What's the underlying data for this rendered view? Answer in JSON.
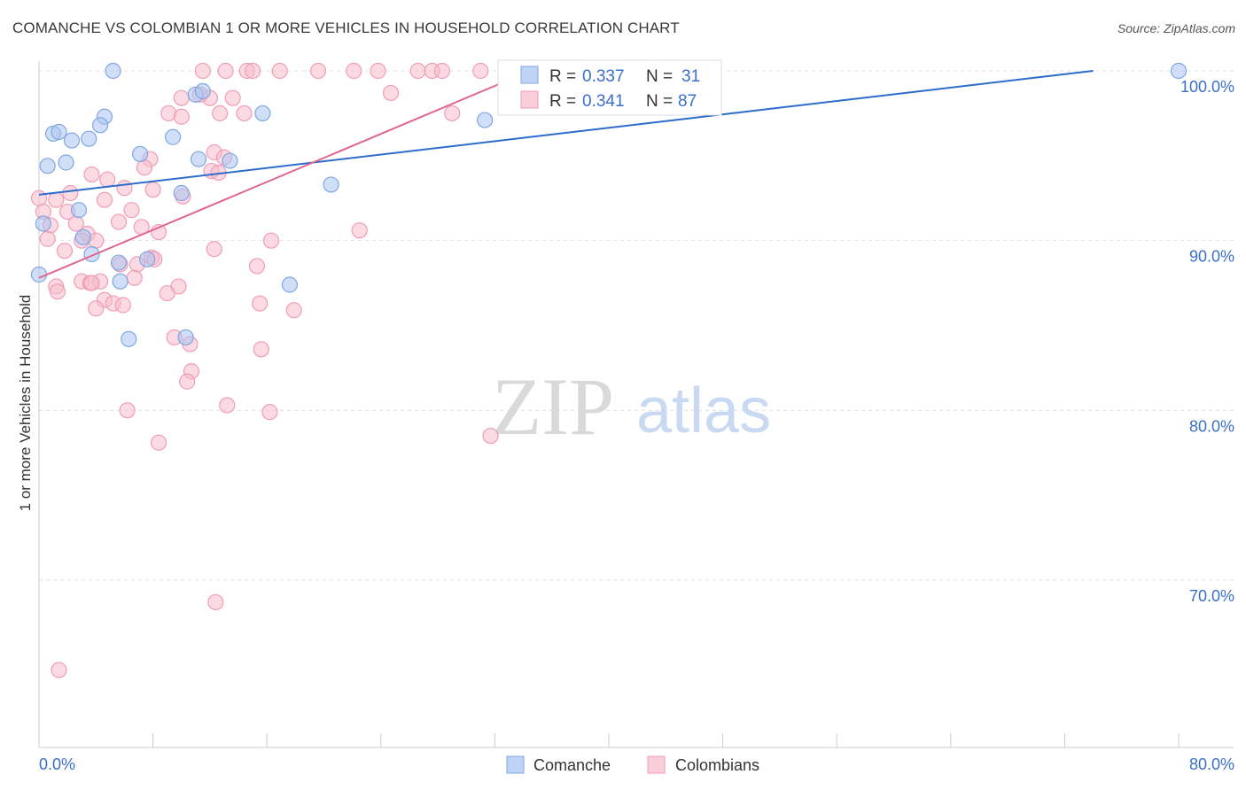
{
  "title": "COMANCHE VS COLOMBIAN 1 OR MORE VEHICLES IN HOUSEHOLD CORRELATION CHART",
  "source": "Source: ZipAtlas.com",
  "watermark": {
    "zip": "ZIP",
    "atlas": "atlas"
  },
  "legend_stats": [
    {
      "r_label": "R =",
      "r_value": "0.337",
      "n_label": "N =",
      "n_value": "31",
      "color": "#8fb3e8",
      "text_color": "#3a6fc9"
    },
    {
      "r_label": "R =",
      "r_value": "0.341",
      "n_label": "N =",
      "n_value": "87",
      "color": "#f4a6bd",
      "text_color": "#3a6fc9"
    }
  ],
  "colors": {
    "comanche_fill": "#a9c4f0",
    "comanche_stroke": "#7fa6e0",
    "comanche_line": "#2d6bcc",
    "colombian_fill": "#f7bccc",
    "colombian_stroke": "#ef9db5",
    "colombian_line": "#e0668f",
    "tick_label": "#3a6fc9",
    "grid": "#e3e3e3"
  },
  "chart_data": {
    "type": "scatter",
    "ylabel": "1 or more Vehicles in Household",
    "xlabel": "",
    "x_tick_labels": [
      "0.0%",
      "80.0%"
    ],
    "y_tick_labels": [
      "100.0%",
      "90.0%",
      "80.0%",
      "70.0%"
    ],
    "y_ticks": [
      100,
      90,
      80,
      70
    ],
    "xlim": [
      0,
      80
    ],
    "ylim": [
      60.5,
      101.5
    ],
    "legend": [
      "Comanche",
      "Colombians"
    ],
    "series": [
      {
        "name": "Comanche",
        "points": [
          [
            5.2,
            100
          ],
          [
            11.0,
            98.6
          ],
          [
            11.5,
            98.8
          ],
          [
            4.6,
            97.3
          ],
          [
            15.7,
            97.5
          ],
          [
            4.3,
            96.8
          ],
          [
            9.4,
            96.1
          ],
          [
            1.0,
            96.3
          ],
          [
            1.4,
            96.4
          ],
          [
            2.3,
            95.9
          ],
          [
            3.5,
            96.0
          ],
          [
            7.1,
            95.1
          ],
          [
            1.9,
            94.6
          ],
          [
            0.6,
            94.4
          ],
          [
            11.2,
            94.8
          ],
          [
            13.4,
            94.7
          ],
          [
            10.0,
            92.8
          ],
          [
            20.5,
            93.3
          ],
          [
            2.8,
            91.8
          ],
          [
            3.1,
            90.2
          ],
          [
            3.7,
            89.2
          ],
          [
            5.6,
            88.7
          ],
          [
            7.6,
            88.9
          ],
          [
            5.7,
            87.6
          ],
          [
            17.6,
            87.4
          ],
          [
            6.3,
            84.2
          ],
          [
            10.3,
            84.3
          ],
          [
            0.0,
            88.0
          ],
          [
            31.3,
            97.1
          ],
          [
            80.0,
            100
          ],
          [
            0.3,
            91.0
          ]
        ]
      },
      {
        "name": "Colombians",
        "points": [
          [
            11.5,
            100
          ],
          [
            13.1,
            100
          ],
          [
            14.6,
            100
          ],
          [
            15.0,
            100
          ],
          [
            16.9,
            100
          ],
          [
            19.6,
            100
          ],
          [
            22.1,
            100
          ],
          [
            23.8,
            100
          ],
          [
            26.6,
            100
          ],
          [
            27.6,
            100
          ],
          [
            31.0,
            100
          ],
          [
            33.5,
            100
          ],
          [
            34.3,
            100
          ],
          [
            28.3,
            100
          ],
          [
            10.0,
            98.4
          ],
          [
            12.0,
            98.4
          ],
          [
            13.6,
            98.4
          ],
          [
            24.7,
            98.7
          ],
          [
            9.1,
            97.5
          ],
          [
            10.0,
            97.3
          ],
          [
            12.7,
            97.5
          ],
          [
            14.4,
            97.5
          ],
          [
            29.0,
            97.5
          ],
          [
            12.3,
            95.2
          ],
          [
            7.8,
            94.8
          ],
          [
            13.0,
            94.9
          ],
          [
            7.4,
            94.3
          ],
          [
            12.1,
            94.1
          ],
          [
            12.6,
            94.0
          ],
          [
            3.7,
            93.9
          ],
          [
            4.8,
            93.6
          ],
          [
            6.0,
            93.1
          ],
          [
            8.0,
            93.0
          ],
          [
            2.2,
            92.8
          ],
          [
            10.1,
            92.6
          ],
          [
            4.6,
            92.4
          ],
          [
            1.2,
            92.4
          ],
          [
            0.0,
            92.5
          ],
          [
            6.5,
            91.8
          ],
          [
            0.3,
            91.7
          ],
          [
            2.0,
            91.7
          ],
          [
            5.6,
            91.1
          ],
          [
            2.6,
            91.0
          ],
          [
            0.8,
            90.9
          ],
          [
            7.2,
            90.8
          ],
          [
            3.4,
            90.4
          ],
          [
            8.4,
            90.5
          ],
          [
            3.0,
            90.0
          ],
          [
            4.0,
            90.0
          ],
          [
            16.3,
            90.0
          ],
          [
            22.5,
            90.6
          ],
          [
            0.6,
            90.1
          ],
          [
            12.3,
            89.5
          ],
          [
            1.8,
            89.4
          ],
          [
            7.9,
            89.0
          ],
          [
            8.1,
            88.9
          ],
          [
            15.3,
            88.5
          ],
          [
            6.9,
            88.6
          ],
          [
            5.7,
            88.6
          ],
          [
            1.2,
            87.3
          ],
          [
            3.0,
            87.6
          ],
          [
            3.6,
            87.5
          ],
          [
            4.3,
            87.6
          ],
          [
            6.7,
            87.8
          ],
          [
            1.3,
            87.0
          ],
          [
            9.8,
            87.3
          ],
          [
            9.0,
            86.9
          ],
          [
            4.6,
            86.5
          ],
          [
            5.2,
            86.3
          ],
          [
            5.9,
            86.2
          ],
          [
            4.0,
            86.0
          ],
          [
            15.5,
            86.3
          ],
          [
            17.9,
            85.9
          ],
          [
            9.5,
            84.3
          ],
          [
            10.6,
            83.9
          ],
          [
            15.6,
            83.6
          ],
          [
            10.7,
            82.3
          ],
          [
            10.4,
            81.7
          ],
          [
            13.2,
            80.3
          ],
          [
            16.2,
            79.9
          ],
          [
            6.2,
            80.0
          ],
          [
            8.4,
            78.1
          ],
          [
            31.7,
            78.5
          ],
          [
            12.4,
            68.7
          ],
          [
            1.4,
            64.7
          ],
          [
            3.7,
            87.5
          ],
          [
            11.3,
            98.6
          ]
        ]
      }
    ],
    "trendlines": [
      {
        "series": "Comanche",
        "x": [
          0,
          74
        ],
        "y": [
          92.7,
          100
        ]
      },
      {
        "series": "Colombians",
        "x": [
          0,
          34.5
        ],
        "y": [
          87.8,
          100
        ]
      }
    ]
  }
}
